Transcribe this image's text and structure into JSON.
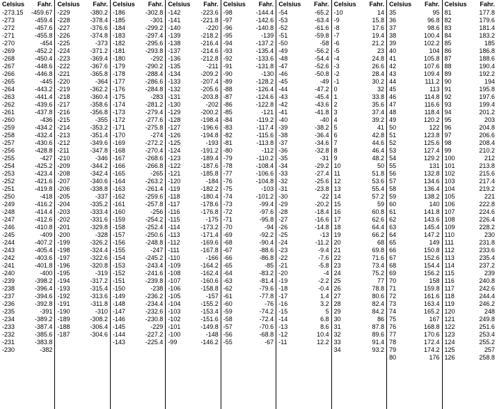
{
  "header": {
    "celsius": "Celsius",
    "fahr": "Fahr."
  },
  "columns": [
    [
      [
        "-273.15",
        "-459.67"
      ],
      [
        "-273",
        "-459.4"
      ],
      [
        "-272",
        "-457.6"
      ],
      [
        "-271",
        "-455.8"
      ],
      [
        "-270",
        "-454"
      ],
      [
        "-269",
        "-452.2"
      ],
      [
        "-268",
        "-450.4"
      ],
      [
        "-267",
        "-448.6"
      ],
      [
        "-266",
        "-446.8"
      ],
      [
        "-265",
        "-445"
      ],
      [
        "-264",
        "-443.2"
      ],
      [
        "-263",
        "-441.4"
      ],
      [
        "-262",
        "-439.6"
      ],
      [
        "-261",
        "-437.8"
      ],
      [
        "-260",
        "-436"
      ],
      [
        "-259",
        "-434.2"
      ],
      [
        "-258",
        "-432.4"
      ],
      [
        "-257",
        "-430.6"
      ],
      [
        "-256",
        "-428.8"
      ],
      [
        "-255",
        "-427"
      ],
      [
        "-254",
        "-425.2"
      ],
      [
        "-253",
        "-423.4"
      ],
      [
        "-252",
        "-421.6"
      ],
      [
        "-251",
        "-419.8"
      ],
      [
        "-250",
        "-418"
      ],
      [
        "-249",
        "-416.2"
      ],
      [
        "-248",
        "-414.4"
      ],
      [
        "-247",
        "-412.6"
      ],
      [
        "-246",
        "-410.8"
      ],
      [
        "-245",
        "-409"
      ],
      [
        "-244",
        "-407.2"
      ],
      [
        "-243",
        "-405.4"
      ],
      [
        "-242",
        "-403.6"
      ],
      [
        "-241",
        "-401.8"
      ],
      [
        "-240",
        "-400"
      ],
      [
        "-239",
        "-398.2"
      ],
      [
        "-238",
        "-396.4"
      ],
      [
        "-237",
        "-394.6"
      ],
      [
        "-236",
        "-392.8"
      ],
      [
        "-235",
        "-391"
      ],
      [
        "-234",
        "-389.2"
      ],
      [
        "-233",
        "-387.4"
      ],
      [
        "-232",
        "-385.6"
      ],
      [
        "-231",
        "-383.8"
      ],
      [
        "-230",
        "-382"
      ]
    ],
    [
      [
        "-229",
        "-380.2"
      ],
      [
        "-228",
        "-378.4"
      ],
      [
        "-227",
        "-376.6"
      ],
      [
        "-226",
        "-374.8"
      ],
      [
        "-225",
        "-373"
      ],
      [
        "-224",
        "-371.2"
      ],
      [
        "-223",
        "-369.4"
      ],
      [
        "-222",
        "-367.6"
      ],
      [
        "-221",
        "-365.8"
      ],
      [
        "-220",
        "-364"
      ],
      [
        "-219",
        "-362.2"
      ],
      [
        "-218",
        "-360.4"
      ],
      [
        "-217",
        "-358.6"
      ],
      [
        "-216",
        "-356.8"
      ],
      [
        "-215",
        "-355"
      ],
      [
        "-214",
        "-353.2"
      ],
      [
        "-213",
        "-351.4"
      ],
      [
        "-212",
        "-349.6"
      ],
      [
        "-211",
        "-347.8"
      ],
      [
        "-210",
        "-346"
      ],
      [
        "-209",
        "-344.2"
      ],
      [
        "-208",
        "-342.4"
      ],
      [
        "-207",
        "-340.6"
      ],
      [
        "-206",
        "-338.8"
      ],
      [
        "-205",
        "-337"
      ],
      [
        "-204",
        "-335.2"
      ],
      [
        "-203",
        "-333.4"
      ],
      [
        "-202",
        "-331.6"
      ],
      [
        "-201",
        "-329.8"
      ],
      [
        "-200",
        "-328"
      ],
      [
        "-199",
        "-326.2"
      ],
      [
        "-198",
        "-324.4"
      ],
      [
        "-197",
        "-322.6"
      ],
      [
        "-196",
        "-320.8"
      ],
      [
        "-195",
        "-319"
      ],
      [
        "-194",
        "-317.2"
      ],
      [
        "-193",
        "-315.4"
      ],
      [
        "-192",
        "-313.6"
      ],
      [
        "-191",
        "-311.8"
      ],
      [
        "-190",
        "-310"
      ],
      [
        "-189",
        "-308.2"
      ],
      [
        "-188",
        "-306.4"
      ],
      [
        "-187",
        "-304.6"
      ]
    ],
    [
      [
        "-186",
        "-302.8"
      ],
      [
        "-185",
        "-301"
      ],
      [
        "-184",
        "-299.2"
      ],
      [
        "-183",
        "-297.4"
      ],
      [
        "-182",
        "-295.6"
      ],
      [
        "-181",
        "-293.8"
      ],
      [
        "-180",
        "-292"
      ],
      [
        "-179",
        "-290.2"
      ],
      [
        "-178",
        "-288.4"
      ],
      [
        "-177",
        "-286.6"
      ],
      [
        "-176",
        "-284.8"
      ],
      [
        "-175",
        "-283"
      ],
      [
        "-174",
        "-281.2"
      ],
      [
        "-173",
        "-279.4"
      ],
      [
        "-172",
        "-277.6"
      ],
      [
        "-171",
        "-275.8"
      ],
      [
        "-170",
        "-274"
      ],
      [
        "-169",
        "-272.2"
      ],
      [
        "-168",
        "-270.4"
      ],
      [
        "-167",
        "-268.6"
      ],
      [
        "-166",
        "-266.8"
      ],
      [
        "-165",
        "-265"
      ],
      [
        "-164",
        "-263.2"
      ],
      [
        "-163",
        "-261.4"
      ],
      [
        "-162",
        "-259.6"
      ],
      [
        "-161",
        "-257.8"
      ],
      [
        "-160",
        "-256"
      ],
      [
        "-159",
        "-254.2"
      ],
      [
        "-158",
        "-252.4"
      ],
      [
        "-157",
        "-250.6"
      ],
      [
        "-156",
        "-248.8"
      ],
      [
        "-155",
        "-247"
      ],
      [
        "-154",
        "-245.2"
      ],
      [
        "-153",
        "-243.4"
      ],
      [
        "-152",
        "-241.6"
      ],
      [
        "-151",
        "-239.8"
      ],
      [
        "-150",
        "-238"
      ],
      [
        "-149",
        "-236.2"
      ],
      [
        "-148",
        "-234.4"
      ],
      [
        "-147",
        "-232.6"
      ],
      [
        "-146",
        "-230.8"
      ],
      [
        "-145",
        "-229"
      ],
      [
        "-144",
        "-227.2"
      ],
      [
        "-143",
        "-225.4"
      ]
    ],
    [
      [
        "-142",
        "-223.6"
      ],
      [
        "-141",
        "-221.8"
      ],
      [
        "-140",
        "-220"
      ],
      [
        "-139",
        "-218.2"
      ],
      [
        "-138",
        "-216.4"
      ],
      [
        "-137",
        "-214.6"
      ],
      [
        "-136",
        "-212.8"
      ],
      [
        "-135",
        "-211"
      ],
      [
        "-134",
        "-209.2"
      ],
      [
        "-133",
        "-207.4"
      ],
      [
        "-132",
        "-205.6"
      ],
      [
        "-131",
        "-203.8"
      ],
      [
        "-130",
        "-202"
      ],
      [
        "-129",
        "-200.2"
      ],
      [
        "-128",
        "-198.4"
      ],
      [
        "-127",
        "-196.6"
      ],
      [
        "-126",
        "-194.8"
      ],
      [
        "-125",
        "-193"
      ],
      [
        "-124",
        "-191.2"
      ],
      [
        "-123",
        "-189.4"
      ],
      [
        "-122",
        "-187.6"
      ],
      [
        "-121",
        "-185.8"
      ],
      [
        "-120",
        "-184"
      ],
      [
        "-119",
        "-182.2"
      ],
      [
        "-118",
        "-180.4"
      ],
      [
        "-117",
        "-178.6"
      ],
      [
        "-116",
        "-176.8"
      ],
      [
        "-115",
        "-175"
      ],
      [
        "-114",
        "-173.2"
      ],
      [
        "-113",
        "-171.4"
      ],
      [
        "-112",
        "-169.6"
      ],
      [
        "-111",
        "-167.8"
      ],
      [
        "-110",
        "-166"
      ],
      [
        "-109",
        "-164.2"
      ],
      [
        "-108",
        "-162.4"
      ],
      [
        "-107",
        "-160.6"
      ],
      [
        "-106",
        "-158.8"
      ],
      [
        "-105",
        "-157"
      ],
      [
        "-104",
        "-155.2"
      ],
      [
        "-103",
        "-153.4"
      ],
      [
        "-102",
        "-151.6"
      ],
      [
        "-101",
        "-149.8"
      ],
      [
        "-100",
        "-148"
      ],
      [
        "-99",
        "-146.2"
      ]
    ],
    [
      [
        "-98",
        "-144.4"
      ],
      [
        "-97",
        "-142.6"
      ],
      [
        "-96",
        "-140.8"
      ],
      [
        "-95",
        "-139"
      ],
      [
        "-94",
        "-137.2"
      ],
      [
        "-93",
        "-135.4"
      ],
      [
        "-92",
        "-133.6"
      ],
      [
        "-91",
        "-131.8"
      ],
      [
        "-90",
        "-130"
      ],
      [
        "-89",
        "-128.2"
      ],
      [
        "-88",
        "-126.4"
      ],
      [
        "-87",
        "-124.6"
      ],
      [
        "-86",
        "-122.8"
      ],
      [
        "-85",
        "-121"
      ],
      [
        "-84",
        "-119.2"
      ],
      [
        "-83",
        "-117.4"
      ],
      [
        "-82",
        "-115.6"
      ],
      [
        "-81",
        "-113.8"
      ],
      [
        "-80",
        "-112"
      ],
      [
        "-79",
        "-110.2"
      ],
      [
        "-78",
        "-108.4"
      ],
      [
        "-77",
        "-106.6"
      ],
      [
        "-76",
        "-104.8"
      ],
      [
        "-75",
        "-103"
      ],
      [
        "-74",
        "-101.2"
      ],
      [
        "-73",
        "-99.4"
      ],
      [
        "-72",
        "-97.6"
      ],
      [
        "-71",
        "-95.8"
      ],
      [
        "-70",
        "-94"
      ],
      [
        "-69",
        "-92.2"
      ],
      [
        "-68",
        "-90.4"
      ],
      [
        "-67",
        "-88.6"
      ],
      [
        "-66",
        "-86.8"
      ],
      [
        "-65",
        "-85"
      ],
      [
        "-64",
        "-83.2"
      ],
      [
        "-63",
        "-81.4"
      ],
      [
        "-62",
        "-79.6"
      ],
      [
        "-61",
        "-77.8"
      ],
      [
        "-60",
        "-76"
      ],
      [
        "-59",
        "-74.2"
      ],
      [
        "-58",
        "-72.4"
      ],
      [
        "-57",
        "-70.6"
      ],
      [
        "-56",
        "-68.8"
      ],
      [
        "-55",
        "-67"
      ]
    ],
    [
      [
        "-54",
        "-65.2"
      ],
      [
        "-53",
        "-63.4"
      ],
      [
        "-52",
        "-61.6"
      ],
      [
        "-51",
        "-59.8"
      ],
      [
        "-50",
        "-58"
      ],
      [
        "-49",
        "-56.2"
      ],
      [
        "-48",
        "-54.4"
      ],
      [
        "-47",
        "-52.6"
      ],
      [
        "-46",
        "-50.8"
      ],
      [
        "-45",
        "-49"
      ],
      [
        "-44",
        "-47.2"
      ],
      [
        "-43",
        "-45.4"
      ],
      [
        "-42",
        "-43.6"
      ],
      [
        "-41",
        "-41.8"
      ],
      [
        "-40",
        "-40"
      ],
      [
        "-39",
        "-38.2"
      ],
      [
        "-38",
        "-36.4"
      ],
      [
        "-37",
        "-34.6"
      ],
      [
        "-36",
        "-32.8"
      ],
      [
        "-35",
        "-31"
      ],
      [
        "-34",
        "-29.2"
      ],
      [
        "-33",
        "-27.4"
      ],
      [
        "-32",
        "-25.6"
      ],
      [
        "-31",
        "-23.8"
      ],
      [
        "-30",
        "-22"
      ],
      [
        "-29",
        "-20.2"
      ],
      [
        "-28",
        "-18.4"
      ],
      [
        "-27",
        "-16.6"
      ],
      [
        "-26",
        "-14.8"
      ],
      [
        "-25",
        "-13"
      ],
      [
        "-24",
        "-11.2"
      ],
      [
        "-23",
        "-9.4"
      ],
      [
        "-22",
        "-7.6"
      ],
      [
        "-21",
        "-5.8"
      ],
      [
        "-20",
        "-4"
      ],
      [
        "-19",
        "-2.2"
      ],
      [
        "-18",
        "-0.4"
      ],
      [
        "-17",
        "1.4"
      ],
      [
        "-16",
        "3.2"
      ],
      [
        "-15",
        "5"
      ],
      [
        "-14",
        "6.8"
      ],
      [
        "-13",
        "8.6"
      ],
      [
        "-12",
        "10.4"
      ],
      [
        "-11",
        "12.2"
      ]
    ],
    [
      [
        "-10",
        "14"
      ],
      [
        "-9",
        "15.8"
      ],
      [
        "-8",
        "17.6"
      ],
      [
        "-7",
        "19.4"
      ],
      [
        "-6",
        "21.2"
      ],
      [
        "-5",
        "23"
      ],
      [
        "-4",
        "24.8"
      ],
      [
        "-3",
        "26.6"
      ],
      [
        "-2",
        "28.4"
      ],
      [
        "-1",
        "30.2"
      ],
      [
        "0",
        "32"
      ],
      [
        "1",
        "33.8"
      ],
      [
        "2",
        "35.6"
      ],
      [
        "3",
        "37.4"
      ],
      [
        "4",
        "39.2"
      ],
      [
        "5",
        "41"
      ],
      [
        "6",
        "42.8"
      ],
      [
        "7",
        "44.6"
      ],
      [
        "8",
        "46.4"
      ],
      [
        "9",
        "48.2"
      ],
      [
        "10",
        "50"
      ],
      [
        "11",
        "51.8"
      ],
      [
        "12",
        "53.6"
      ],
      [
        "13",
        "55.4"
      ],
      [
        "14",
        "57.2"
      ],
      [
        "15",
        "59"
      ],
      [
        "16",
        "60.8"
      ],
      [
        "17",
        "62.6"
      ],
      [
        "18",
        "64.4"
      ],
      [
        "19",
        "66.2"
      ],
      [
        "20",
        "68"
      ],
      [
        "21",
        "69.8"
      ],
      [
        "22",
        "71.6"
      ],
      [
        "23",
        "73.4"
      ],
      [
        "24",
        "75.2"
      ],
      [
        "25",
        "77"
      ],
      [
        "26",
        "78.8"
      ],
      [
        "27",
        "80.6"
      ],
      [
        "28",
        "82.4"
      ],
      [
        "29",
        "84.2"
      ],
      [
        "30",
        "86"
      ],
      [
        "31",
        "87.8"
      ],
      [
        "32",
        "89.6"
      ],
      [
        "33",
        "91.4"
      ],
      [
        "34",
        "93.2"
      ]
    ],
    [
      [
        "35",
        "95"
      ],
      [
        "36",
        "96.8"
      ],
      [
        "37",
        "98.6"
      ],
      [
        "38",
        "100.4"
      ],
      [
        "39",
        "102.2"
      ],
      [
        "40",
        "104"
      ],
      [
        "41",
        "105.8"
      ],
      [
        "42",
        "107.6"
      ],
      [
        "43",
        "109.4"
      ],
      [
        "44",
        "111.2"
      ],
      [
        "45",
        "113"
      ],
      [
        "46",
        "114.8"
      ],
      [
        "47",
        "116.6"
      ],
      [
        "48",
        "118.4"
      ],
      [
        "49",
        "120.2"
      ],
      [
        "50",
        "122"
      ],
      [
        "51",
        "123.8"
      ],
      [
        "52",
        "125.6"
      ],
      [
        "53",
        "127.4"
      ],
      [
        "54",
        "129.2"
      ],
      [
        "55",
        "131"
      ],
      [
        "56",
        "132.8"
      ],
      [
        "57",
        "134.6"
      ],
      [
        "58",
        "136.4"
      ],
      [
        "59",
        "138.2"
      ],
      [
        "60",
        "140"
      ],
      [
        "61",
        "141.8"
      ],
      [
        "62",
        "143.6"
      ],
      [
        "63",
        "145.4"
      ],
      [
        "64",
        "147.2"
      ],
      [
        "65",
        "149"
      ],
      [
        "66",
        "150.8"
      ],
      [
        "67",
        "152.6"
      ],
      [
        "68",
        "154.4"
      ],
      [
        "69",
        "156.2"
      ],
      [
        "70",
        "158"
      ],
      [
        "71",
        "159.8"
      ],
      [
        "72",
        "161.6"
      ],
      [
        "73",
        "163.4"
      ],
      [
        "74",
        "165.2"
      ],
      [
        "75",
        "167"
      ],
      [
        "76",
        "168.8"
      ],
      [
        "77",
        "170.6"
      ],
      [
        "78",
        "172.4"
      ],
      [
        "79",
        "174.2"
      ],
      [
        "80",
        "176"
      ]
    ],
    [
      [
        "81",
        "177.8"
      ],
      [
        "82",
        "179.6"
      ],
      [
        "83",
        "181.4"
      ],
      [
        "84",
        "183.2"
      ],
      [
        "85",
        "185"
      ],
      [
        "86",
        "186.8"
      ],
      [
        "87",
        "188.6"
      ],
      [
        "88",
        "190.4"
      ],
      [
        "89",
        "192.2"
      ],
      [
        "90",
        "194"
      ],
      [
        "91",
        "195.8"
      ],
      [
        "92",
        "197.6"
      ],
      [
        "93",
        "199.4"
      ],
      [
        "94",
        "201.2"
      ],
      [
        "95",
        "203"
      ],
      [
        "96",
        "204.8"
      ],
      [
        "97",
        "206.6"
      ],
      [
        "98",
        "208.4"
      ],
      [
        "99",
        "210.2"
      ],
      [
        "100",
        "212"
      ],
      [
        "101",
        "213.8"
      ],
      [
        "102",
        "215.6"
      ],
      [
        "103",
        "217.4"
      ],
      [
        "104",
        "219.2"
      ],
      [
        "105",
        "221"
      ],
      [
        "106",
        "222.8"
      ],
      [
        "107",
        "224.6"
      ],
      [
        "108",
        "226.4"
      ],
      [
        "109",
        "228.2"
      ],
      [
        "110",
        "230"
      ],
      [
        "111",
        "231.8"
      ],
      [
        "112",
        "233.6"
      ],
      [
        "113",
        "235.4"
      ],
      [
        "114",
        "237.2"
      ],
      [
        "115",
        "239"
      ],
      [
        "116",
        "240.8"
      ],
      [
        "117",
        "242.6"
      ],
      [
        "118",
        "244.4"
      ],
      [
        "119",
        "246.2"
      ],
      [
        "120",
        "248"
      ],
      [
        "121",
        "249.8"
      ],
      [
        "122",
        "251.6"
      ],
      [
        "123",
        "253.4"
      ],
      [
        "124",
        "255.2"
      ],
      [
        "125",
        "257"
      ],
      [
        "126",
        "258.8"
      ]
    ]
  ]
}
